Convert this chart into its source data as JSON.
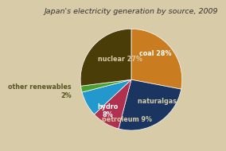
{
  "title": "Japan's electricity generation by source, 2009",
  "labels": [
    "coal",
    "natural gas",
    "petroleum",
    "hydro",
    "other renewables",
    "nuclear"
  ],
  "values": [
    28,
    26,
    9,
    8,
    2,
    27
  ],
  "colors": [
    "#c97d20",
    "#1a3560",
    "#b03050",
    "#2298cc",
    "#4da030",
    "#4a3d08"
  ],
  "title_fontsize": 6.8,
  "label_fontsize": 5.8,
  "background_color": "#d8cba8"
}
